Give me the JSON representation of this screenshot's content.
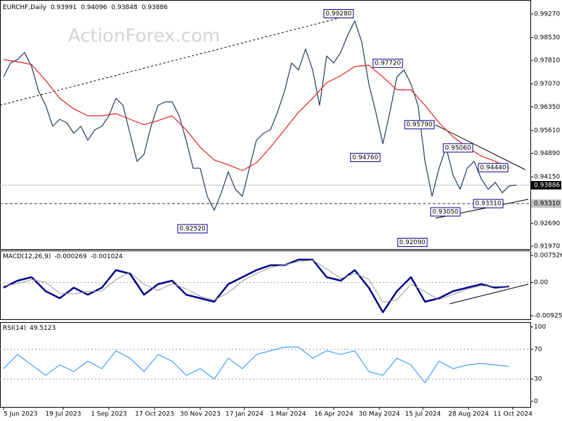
{
  "chart_data": [
    {
      "type": "line",
      "symbol": "EURCHF,Daily",
      "ohlc": [
        0.93991,
        0.94096,
        0.93848,
        0.93886
      ],
      "watermark": "ActionForex.com",
      "xlim": [
        -0.5,
        75
      ],
      "xticks": [
        {
          "value": 0,
          "label": "5 Jun 2023"
        },
        {
          "value": 8.5,
          "label": "19 Jul 2023"
        },
        {
          "value": 15,
          "label": "1 Sep 2023"
        },
        {
          "value": 21.5,
          "label": "17 Oct 2023"
        },
        {
          "value": 28,
          "label": "30 Nov 2023"
        },
        {
          "value": 34.3,
          "label": "17 Jan 2024"
        },
        {
          "value": 40.5,
          "label": "1 Mar 2024"
        },
        {
          "value": 47,
          "label": "16 Apr 2024"
        },
        {
          "value": 53.5,
          "label": "30 May 2024"
        },
        {
          "value": 59.7,
          "label": "15 Jul 2024"
        },
        {
          "value": 66.2,
          "label": "28 Aug 2024"
        },
        {
          "value": 72.5,
          "label": "11 Oct 2024"
        }
      ],
      "ylim": [
        0.9188,
        0.9971
      ],
      "yticks": [
        {
          "value": 0.9927,
          "label": "0.99270"
        },
        {
          "value": 0.9853,
          "label": "0.98530"
        },
        {
          "value": 0.9781,
          "label": "0.97810"
        },
        {
          "value": 0.9707,
          "label": "0.97070"
        },
        {
          "value": 0.9635,
          "label": "0.96350"
        },
        {
          "value": 0.9561,
          "label": "0.95610"
        },
        {
          "value": 0.9489,
          "label": "0.94890"
        },
        {
          "value": 0.9415,
          "label": "0.94150"
        },
        {
          "value": 0.9269,
          "label": "0.92690"
        },
        {
          "value": 0.9197,
          "label": "0.91970"
        }
      ],
      "series": [
        {
          "color": "#1f3a5f",
          "values": [
            0.9729,
            0.9773,
            0.9784,
            0.9806,
            0.9762,
            0.9684,
            0.964,
            0.9574,
            0.9596,
            0.9585,
            0.9552,
            0.9574,
            0.953,
            0.9563,
            0.9574,
            0.9607,
            0.9662,
            0.964,
            0.9552,
            0.9464,
            0.9486,
            0.9574,
            0.964,
            0.9651,
            0.9651,
            0.9607,
            0.953,
            0.9442,
            0.9442,
            0.9354,
            0.931,
            0.9365,
            0.9431,
            0.9376,
            0.9354,
            0.9442,
            0.953,
            0.9552,
            0.9563,
            0.9618,
            0.9684,
            0.9773,
            0.9751,
            0.9817,
            0.9751,
            0.964,
            0.9795,
            0.9773,
            0.9806,
            0.9861,
            0.9905,
            0.9839,
            0.9707,
            0.9618,
            0.9519,
            0.9618,
            0.9729,
            0.9751,
            0.9707,
            0.964,
            0.9464,
            0.9354,
            0.9442,
            0.9508,
            0.942,
            0.9376,
            0.9442,
            0.9464,
            0.9409,
            0.9376,
            0.9398,
            0.9365,
            0.9387,
            0.9389
          ]
        },
        {
          "color": "#e02020",
          "x": [
            0,
            2,
            4,
            6,
            8,
            10,
            12,
            14,
            16,
            18,
            20,
            22,
            24,
            26,
            28,
            30,
            32,
            34,
            36,
            38,
            40,
            42,
            44,
            46,
            48,
            50,
            52,
            54,
            56,
            58,
            60,
            62,
            64,
            66,
            68,
            70,
            72
          ],
          "values": [
            0.9784,
            0.9777,
            0.9768,
            0.9718,
            0.9662,
            0.9629,
            0.9607,
            0.9607,
            0.9614,
            0.9596,
            0.9579,
            0.9592,
            0.9607,
            0.9563,
            0.9508,
            0.9468,
            0.9453,
            0.9435,
            0.9459,
            0.9508,
            0.9563,
            0.9618,
            0.9662,
            0.9711,
            0.9733,
            0.9762,
            0.9766,
            0.9729,
            0.9689,
            0.9689,
            0.964,
            0.9585,
            0.9541,
            0.9508,
            0.9481,
            0.9464,
            0.9442
          ]
        }
      ],
      "annotations": [
        {
          "x": 50,
          "value": 0.9928,
          "label": "0.99280"
        },
        {
          "x": 57,
          "value": 0.9772,
          "label": "0.97720"
        },
        {
          "x": 61.5,
          "value": 0.9579,
          "label": "0.95790"
        },
        {
          "x": 67,
          "value": 0.9506,
          "label": "0.95060"
        },
        {
          "x": 72,
          "value": 0.9444,
          "label": "0.94440"
        },
        {
          "x": 53.8,
          "value": 0.9476,
          "label": "0.94760"
        },
        {
          "x": 29.2,
          "value": 0.9252,
          "label": "0.92520"
        },
        {
          "x": 65.2,
          "value": 0.9305,
          "label": "0.93050"
        },
        {
          "x": 71.3,
          "value": 0.9331,
          "label": "0.93310"
        },
        {
          "x": 60.5,
          "value": 0.9209,
          "label": "0.92090"
        }
      ],
      "levels": [
        {
          "value": 0.93886,
          "label": "0.93886",
          "style": "current"
        },
        {
          "value": 0.9331,
          "label": "0.93310",
          "style": "dashed"
        }
      ]
    },
    {
      "type": "line",
      "title": "MACD(12,26,9)",
      "readings": [
        -0.000269,
        -0.001024
      ],
      "xlim": [
        -0.5,
        75
      ],
      "ylim": [
        -0.01042,
        0.00889
      ],
      "yticks": [
        0.007526,
        {
          "value": 0,
          "label": "0.00"
        },
        -0.009252
      ],
      "levels": [
        0
      ],
      "series": [
        {
          "color": "#00008b",
          "width": 2.5,
          "x": [
            0,
            2,
            4,
            6,
            8,
            10,
            12,
            14,
            16,
            18,
            20,
            22,
            24,
            26,
            28,
            30,
            32,
            34,
            36,
            38,
            40,
            42,
            44,
            46,
            48,
            50,
            52,
            54,
            56,
            58,
            60,
            62,
            64,
            66,
            68,
            70,
            72
          ],
          "values": [
            -0.00144,
            0.00051,
            0.00148,
            -0.00242,
            -0.00437,
            -0.00144,
            -0.00339,
            -0.00144,
            0.00343,
            0.00246,
            -0.00339,
            -0.00047,
            0.00051,
            -0.00339,
            -0.00437,
            -0.00535,
            -0.00047,
            0.00148,
            0.00343,
            0.0048,
            0.0048,
            0.00636,
            0.00636,
            0.00148,
            0.00051,
            0.00343,
            -0.00144,
            -0.00827,
            -0.00242,
            0.00148,
            -0.00535,
            -0.00437,
            -0.00242,
            -0.00144,
            -0.00047,
            -0.00144,
            -0.00105
          ]
        },
        {
          "color": "#9a9a9a",
          "width": 1,
          "x": [
            0,
            2,
            4,
            6,
            8,
            10,
            12,
            14,
            16,
            18,
            20,
            22,
            24,
            26,
            28,
            30,
            32,
            34,
            36,
            38,
            40,
            42,
            44,
            46,
            48,
            50,
            52,
            54,
            56,
            58,
            60,
            62,
            64,
            66,
            68,
            70,
            72
          ],
          "values": [
            -0.001,
            -0.0003,
            0.0008,
            0.0001,
            -0.003,
            -0.0032,
            -0.0025,
            -0.0024,
            0.0008,
            0.0028,
            -0.0005,
            -0.0022,
            -0.0003,
            -0.0018,
            -0.0038,
            -0.0049,
            -0.0028,
            0.0004,
            0.0025,
            0.0042,
            0.0049,
            0.0058,
            0.0062,
            0.0038,
            0.0011,
            0.0025,
            0.0009,
            -0.0055,
            -0.0048,
            -0.0005,
            -0.0025,
            -0.0048,
            -0.0033,
            -0.0019,
            -0.0009,
            -0.0011,
            -0.001
          ]
        }
      ]
    },
    {
      "type": "line",
      "title": "RSI(14)",
      "readings": [
        49.5123
      ],
      "xlim": [
        -0.5,
        75
      ],
      "ylim": [
        -7.5,
        106.6
      ],
      "yticks": [
        100,
        70,
        30,
        0
      ],
      "levels": [
        70,
        30
      ],
      "series": [
        {
          "color": "#1e90ff",
          "width": 1,
          "x": [
            0,
            2,
            4,
            6,
            8,
            10,
            12,
            14,
            16,
            18,
            20,
            22,
            24,
            26,
            28,
            30,
            32,
            34,
            36,
            38,
            40,
            42,
            44,
            46,
            48,
            50,
            52,
            54,
            56,
            58,
            60,
            62,
            64,
            66,
            68,
            70,
            72
          ],
          "values": [
            44,
            63,
            49,
            35,
            49,
            40,
            54,
            44,
            68,
            58,
            40,
            63,
            54,
            35,
            44,
            30,
            58,
            44,
            63,
            68,
            73,
            73,
            58,
            68,
            63,
            68,
            40,
            35,
            58,
            49,
            25,
            54,
            44,
            49,
            51,
            49,
            47
          ]
        }
      ]
    }
  ]
}
